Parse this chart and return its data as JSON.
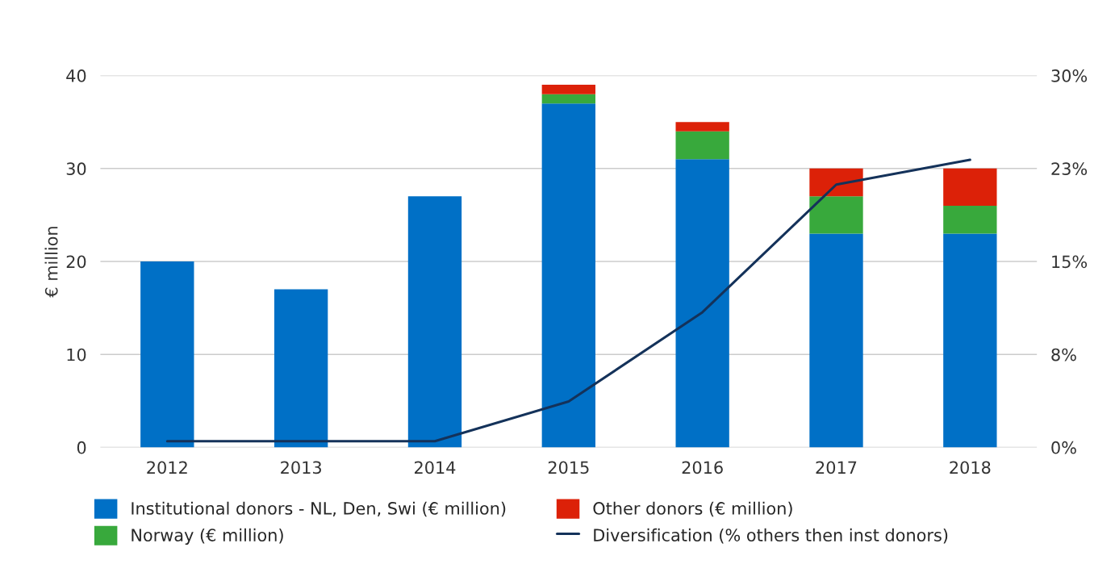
{
  "chart_data": {
    "type": "bar",
    "stacked": true,
    "ylabel": "€ million",
    "categories": [
      "2012",
      "2013",
      "2014",
      "2015",
      "2016",
      "2017",
      "2018"
    ],
    "series": [
      {
        "name": "Institutional donors - NL, Den, Swi (€ million)",
        "color": "#0070c6",
        "values": [
          20,
          17,
          27,
          37,
          31,
          23,
          23
        ]
      },
      {
        "name": "Norway (€ million)",
        "color": "#38a93c",
        "values": [
          0,
          0,
          0,
          1,
          3,
          4,
          3
        ]
      },
      {
        "name": "Other donors (€ million)",
        "color": "#dc2108",
        "values": [
          0,
          0,
          0,
          1,
          1,
          3,
          4
        ]
      },
      {
        "name": "Diversification (% others then inst donors)",
        "type": "line",
        "axis": "y2",
        "color": "#14325a",
        "values": [
          0.5,
          0.5,
          0.5,
          3.7,
          10.9,
          21.2,
          23.2
        ]
      }
    ],
    "ylim": [
      0,
      40
    ],
    "yticks": [
      0,
      10,
      20,
      30,
      40
    ],
    "y2lim": [
      0,
      30
    ],
    "y2ticks": [
      {
        "value": 0,
        "label": "0%"
      },
      {
        "value": 7.5,
        "label": "8%"
      },
      {
        "value": 15,
        "label": "15%"
      },
      {
        "value": 22.5,
        "label": "23%"
      },
      {
        "value": 30,
        "label": "30%"
      }
    ],
    "grid": "y",
    "legend": "bottom",
    "marker": "none",
    "line_style": "solid"
  }
}
